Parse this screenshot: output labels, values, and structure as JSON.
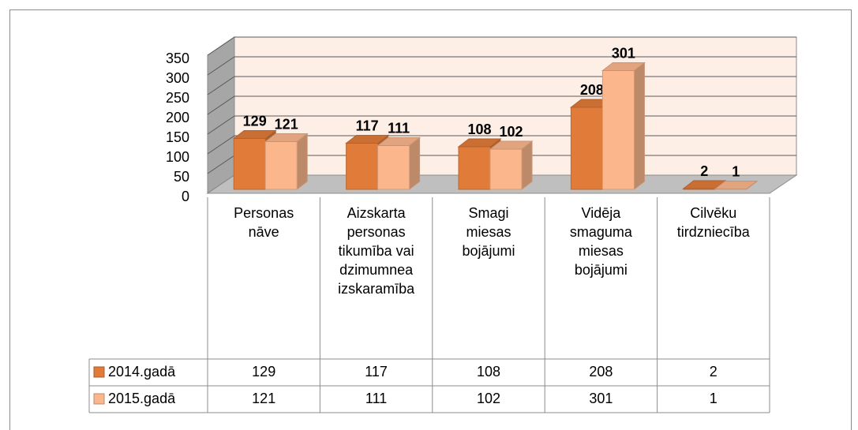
{
  "chart_data": {
    "type": "bar",
    "categories": [
      "Personas nāve",
      "Aizskarta personas tikumība vai dzimumnea izskaramība",
      "Smagi miesas bojājumi",
      "Vidēja smaguma miesas bojājumi",
      "Cilvēku tirdzniecība"
    ],
    "series": [
      {
        "name": "2014.gadā",
        "color": "#e07b39",
        "values": [
          129,
          117,
          108,
          208,
          2
        ]
      },
      {
        "name": "2015.gadā",
        "color": "#fbb68c",
        "values": [
          121,
          111,
          102,
          301,
          1
        ]
      }
    ],
    "ylim": [
      0,
      350
    ],
    "yticks": [
      0,
      50,
      100,
      150,
      200,
      250,
      300,
      350
    ],
    "grid": true
  }
}
